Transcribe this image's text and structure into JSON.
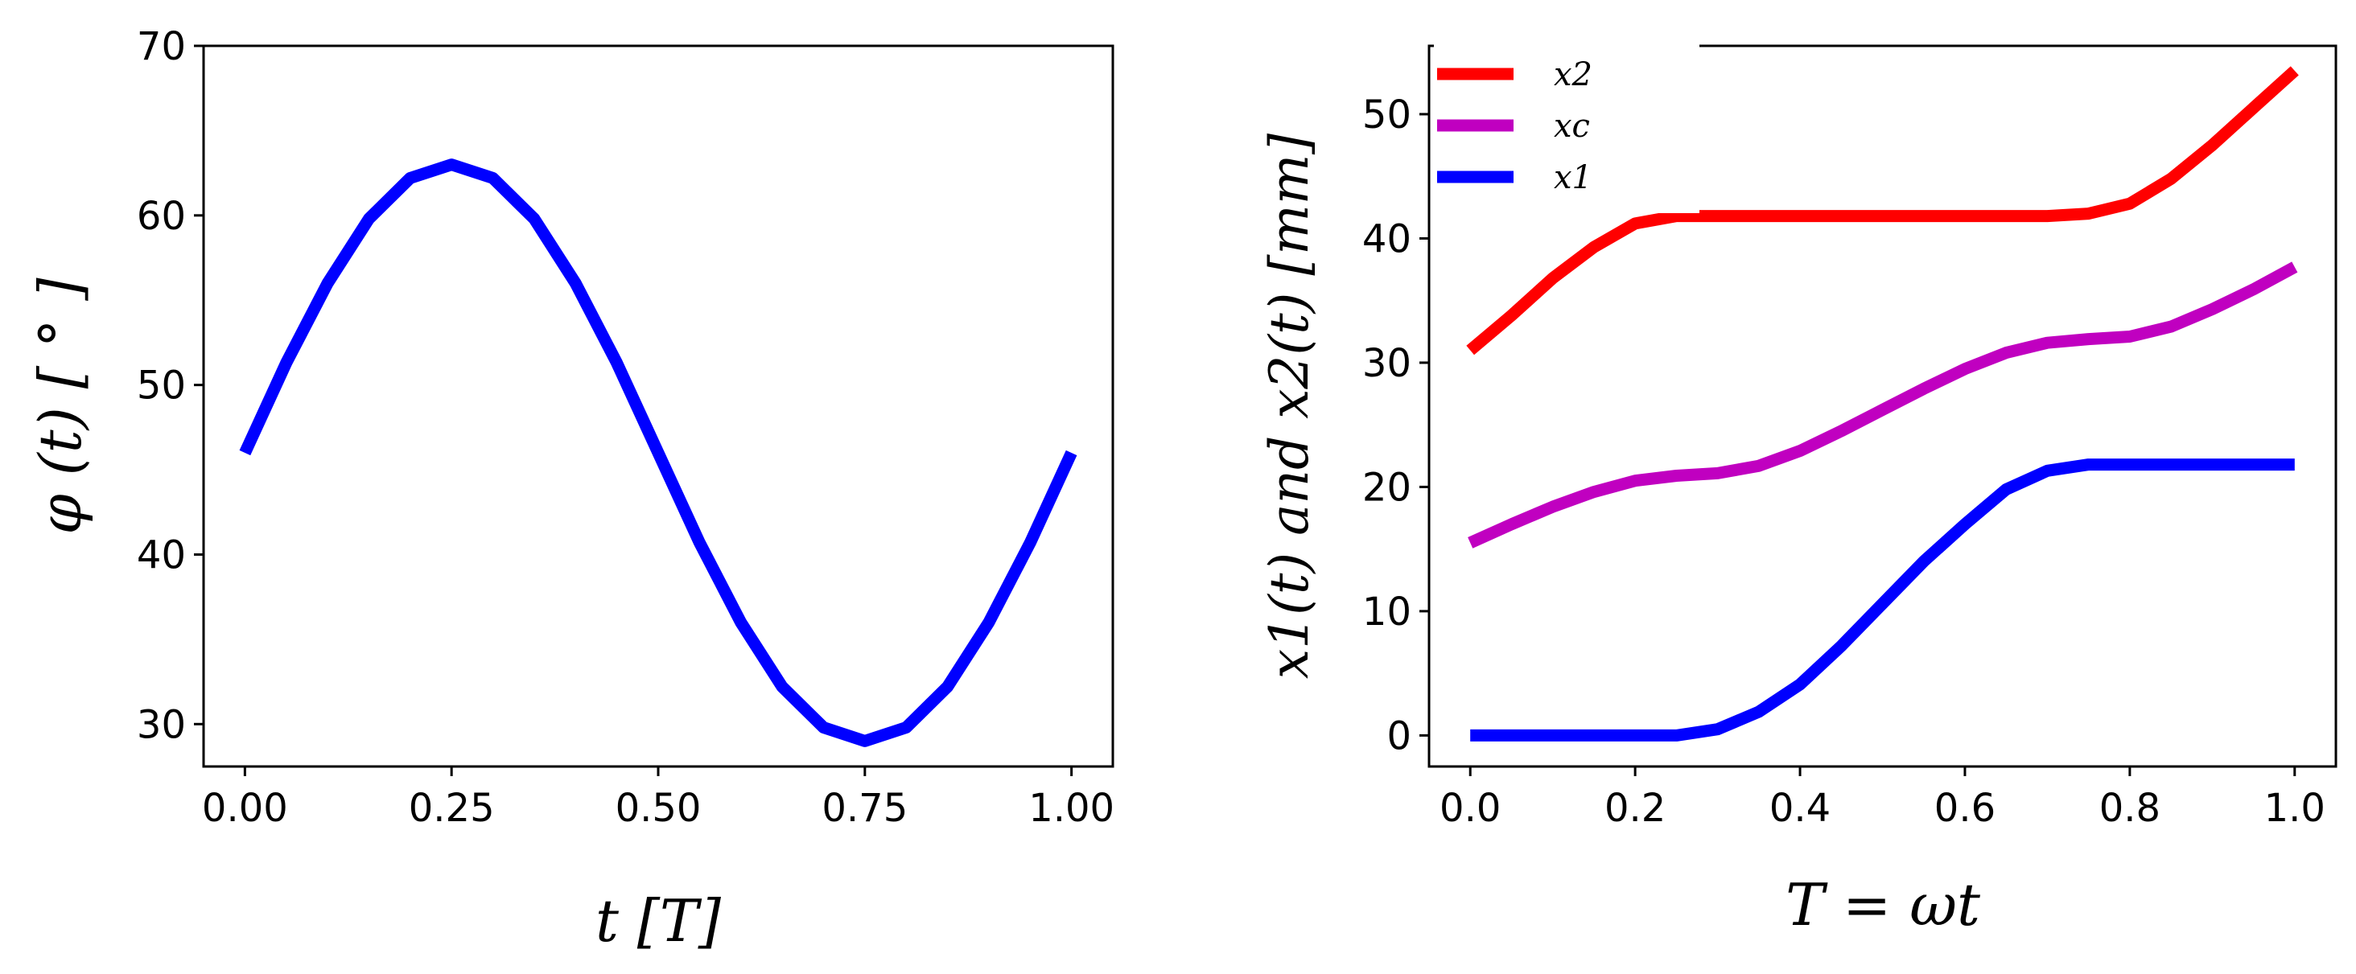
{
  "chart_data": [
    {
      "type": "line",
      "title": "",
      "xlabel": "t [T]",
      "ylabel": "φ (t) [ ° ]",
      "xlim": [
        -0.05,
        1.05
      ],
      "ylim": [
        27.5,
        70
      ],
      "xticks": [
        0.0,
        0.25,
        0.5,
        0.75,
        1.0
      ],
      "xtick_labels": [
        "0.00",
        "0.25",
        "0.50",
        "0.75",
        "1.00"
      ],
      "yticks": [
        30,
        40,
        50,
        60,
        70
      ],
      "ytick_labels": [
        "30",
        "40",
        "50",
        "60",
        "70"
      ],
      "series": [
        {
          "name": "φ",
          "color": "#0000ff",
          "x": [
            0.0,
            0.05,
            0.1,
            0.15,
            0.2,
            0.25,
            0.3,
            0.35,
            0.4,
            0.45,
            0.5,
            0.55,
            0.6,
            0.65,
            0.7,
            0.75,
            0.8,
            0.85,
            0.9,
            0.95,
            1.0
          ],
          "y": [
            46.0,
            51.3,
            56.0,
            59.8,
            62.2,
            63.0,
            62.2,
            59.8,
            56.0,
            51.3,
            46.0,
            40.7,
            36.0,
            32.2,
            29.8,
            29.0,
            29.8,
            32.2,
            36.0,
            40.7,
            46.0
          ]
        }
      ]
    },
    {
      "type": "line",
      "title": "",
      "xlabel": "T =  ωt",
      "ylabel": "x1(t) and x2(t) [mm]",
      "xlim": [
        -0.05,
        1.05
      ],
      "ylim": [
        -2.5,
        55.5
      ],
      "xticks": [
        0.0,
        0.2,
        0.4,
        0.6,
        0.8,
        1.0
      ],
      "xtick_labels": [
        "0.0",
        "0.2",
        "0.4",
        "0.6",
        "0.8",
        "1.0"
      ],
      "yticks": [
        0,
        10,
        20,
        30,
        40,
        50
      ],
      "ytick_labels": [
        "0",
        "10",
        "20",
        "30",
        "40",
        "50"
      ],
      "legend": {
        "position": "top-left",
        "entries": [
          {
            "label": "x2",
            "color": "#ff0000"
          },
          {
            "label": "xc",
            "color": "#c000c0"
          },
          {
            "label": "x1",
            "color": "#0000ff"
          }
        ]
      },
      "series": [
        {
          "name": "x2",
          "color": "#ff0000",
          "x": [
            0.0,
            0.05,
            0.1,
            0.15,
            0.2,
            0.25,
            0.3,
            0.4,
            0.5,
            0.6,
            0.7,
            0.75,
            0.8,
            0.85,
            0.9,
            0.95,
            1.0
          ],
          "y": [
            31.0,
            33.8,
            36.8,
            39.3,
            41.2,
            41.8,
            41.8,
            41.8,
            41.8,
            41.8,
            41.8,
            42.0,
            42.8,
            44.8,
            47.5,
            50.5,
            53.5
          ]
        },
        {
          "name": "xc",
          "color": "#c000c0",
          "x": [
            0.0,
            0.05,
            0.1,
            0.15,
            0.2,
            0.25,
            0.3,
            0.35,
            0.4,
            0.45,
            0.5,
            0.55,
            0.6,
            0.65,
            0.7,
            0.75,
            0.8,
            0.85,
            0.9,
            0.95,
            1.0
          ],
          "y": [
            15.5,
            17.0,
            18.4,
            19.6,
            20.5,
            20.9,
            21.1,
            21.7,
            22.9,
            24.5,
            26.2,
            27.9,
            29.5,
            30.8,
            31.6,
            31.9,
            32.1,
            32.9,
            34.3,
            35.9,
            37.7
          ]
        },
        {
          "name": "x1",
          "color": "#0000ff",
          "x": [
            0.0,
            0.1,
            0.2,
            0.25,
            0.3,
            0.35,
            0.4,
            0.45,
            0.5,
            0.55,
            0.6,
            0.65,
            0.7,
            0.75,
            0.8,
            0.9,
            1.0
          ],
          "y": [
            0.0,
            0.0,
            0.0,
            0.0,
            0.5,
            1.9,
            4.1,
            7.2,
            10.6,
            14.0,
            17.0,
            19.8,
            21.3,
            21.8,
            21.8,
            21.8,
            21.8
          ]
        }
      ]
    }
  ]
}
